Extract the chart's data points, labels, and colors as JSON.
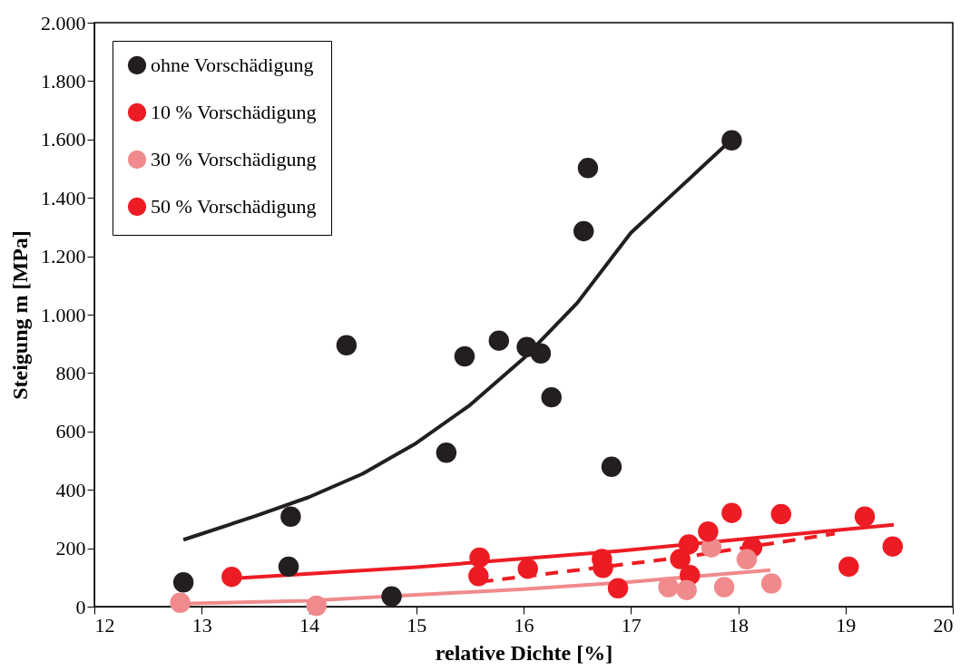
{
  "chart_data": {
    "type": "scatter",
    "xlabel": "relative Dichte [%]",
    "ylabel": "Steigung m [MPa]",
    "xlim": [
      12,
      20
    ],
    "xticks": [
      12,
      13,
      14,
      15,
      16,
      17,
      18,
      19,
      20
    ],
    "ylim": [
      0,
      2000
    ],
    "yticks": [
      0,
      200,
      400,
      600,
      800,
      {
        "value": 1000,
        "label": "1.000"
      },
      {
        "value": 1200,
        "label": "1.200"
      },
      {
        "value": 1400,
        "label": "1.400"
      },
      {
        "value": 1600,
        "label": "1.600"
      },
      {
        "value": 1800,
        "label": "1.800"
      },
      {
        "value": 2000,
        "label": "2.000"
      }
    ],
    "grid": false,
    "legend": "top left",
    "marker": "circle",
    "series": [
      {
        "type": "line",
        "marker": "none",
        "color": "#231f20",
        "line_style": "solid",
        "x": [
          12.83,
          13.5,
          14.0,
          14.5,
          15.0,
          15.5,
          16.0,
          16.5,
          17.0,
          17.5,
          17.94
        ],
        "values": [
          229,
          310,
          375,
          455,
          560,
          690,
          850,
          1040,
          1280,
          1450,
          1600
        ]
      },
      {
        "type": "line",
        "marker": "none",
        "color": "#ed1c24",
        "line_style": "dashed",
        "x": [
          15.6,
          16.5,
          17.5,
          18.9
        ],
        "values": [
          85,
          125,
          170,
          250
        ]
      },
      {
        "type": "line",
        "marker": "none",
        "color": "#f08a8c",
        "line_style": "solid",
        "x": [
          12.8,
          14.0,
          15.0,
          16.0,
          17.0,
          18.3
        ],
        "values": [
          10,
          20,
          40,
          60,
          85,
          125
        ]
      },
      {
        "type": "line",
        "marker": "none",
        "color": "#ed1c24",
        "line_style": "solid",
        "x": [
          13.35,
          15.0,
          16.88,
          18.0,
          19.45
        ],
        "values": [
          98,
          135,
          190,
          230,
          280
        ]
      },
      {
        "name": "ohne Vorschädigung",
        "color": "#231f20",
        "x": [
          12.83,
          13.83,
          13.81,
          14.35,
          14.77,
          15.28,
          15.45,
          15.77,
          16.03,
          16.16,
          16.26,
          16.56,
          16.6,
          16.82,
          17.94
        ],
        "values": [
          83,
          308,
          137,
          895,
          35,
          527,
          857,
          911,
          889,
          867,
          717,
          1286,
          1502,
          479,
          1597
        ]
      },
      {
        "name": "10 % Vorschädigung",
        "color": "#ed1c24",
        "x": [
          15.58,
          16.73,
          16.74,
          17.54,
          17.46,
          17.55,
          18.13,
          18.4,
          19.03
        ],
        "values": [
          105,
          163,
          133,
          213,
          163,
          108,
          203,
          317,
          137
        ]
      },
      {
        "name": "30 % Vorschädigung",
        "color": "#f08a8c",
        "x": [
          12.8,
          14.07,
          17.35,
          17.52,
          17.87,
          18.08,
          17.75,
          18.31
        ],
        "values": [
          13,
          3,
          67,
          57,
          67,
          162,
          203,
          79
        ]
      },
      {
        "name": "50 % Vorschädigung",
        "color": "#ed1c24",
        "x": [
          13.28,
          15.59,
          16.04,
          16.88,
          17.72,
          17.94,
          19.18,
          19.44
        ],
        "values": [
          102,
          168,
          130,
          63,
          257,
          321,
          308,
          206
        ]
      }
    ]
  }
}
